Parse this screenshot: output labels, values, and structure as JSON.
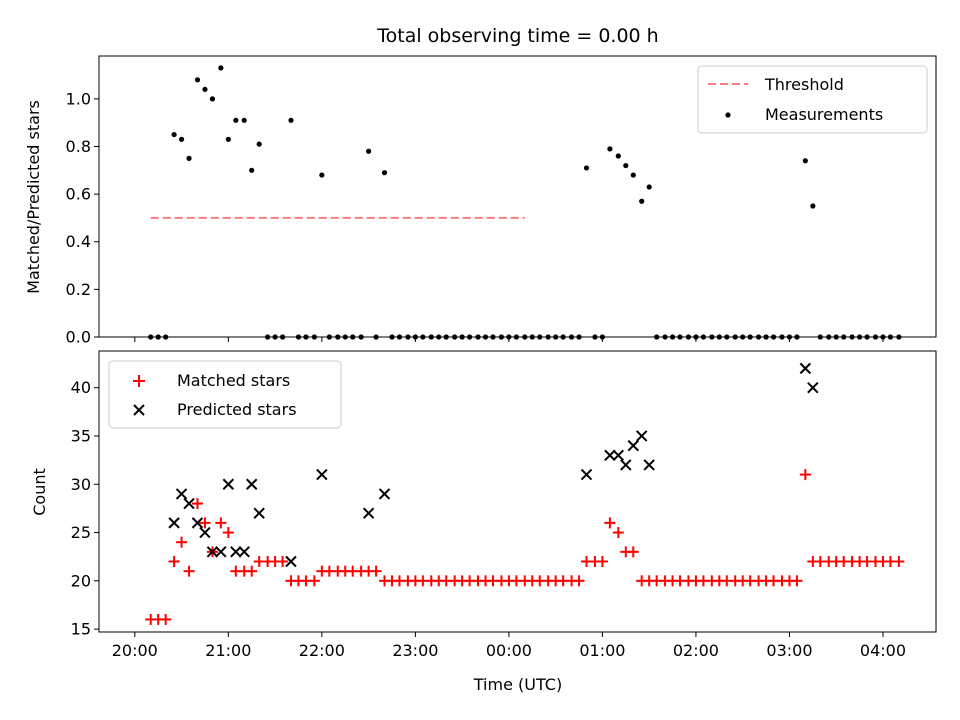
{
  "figure": {
    "title": "Total observing time = 0.00 h",
    "x_axis": {
      "label": "Time (UTC)",
      "tick_labels": [
        "20:00",
        "21:00",
        "22:00",
        "23:00",
        "00:00",
        "01:00",
        "02:00",
        "03:00",
        "04:00"
      ],
      "range_hours": [
        19.617,
        28.567
      ]
    }
  },
  "chart_data": [
    {
      "type": "scatter",
      "ylabel": "Matched/Predicted stars",
      "ylim": [
        0,
        1.18
      ],
      "yticks": [
        0.0,
        0.2,
        0.4,
        0.6,
        0.8,
        1.0
      ],
      "ytick_labels": [
        "0.0",
        "0.2",
        "0.4",
        "0.6",
        "0.8",
        "1.0"
      ],
      "legend_position": "upper right",
      "series": [
        {
          "name": "Threshold",
          "style": "dashed-line",
          "color": "#ff7b7b",
          "x_hours": [
            20.17,
            24.17
          ],
          "y": [
            0.5,
            0.5
          ]
        },
        {
          "name": "Measurements",
          "style": "dot",
          "color": "#000000",
          "x_hours": [
            20.17,
            20.25,
            20.33,
            20.42,
            20.5,
            20.58,
            20.67,
            20.75,
            20.83,
            20.92,
            21.0,
            21.08,
            21.17,
            21.25,
            21.33,
            21.42,
            21.5,
            21.58,
            21.67,
            21.75,
            21.83,
            21.92,
            22.0,
            22.08,
            22.17,
            22.25,
            22.33,
            22.42,
            22.5,
            22.58,
            22.67,
            22.75,
            22.83,
            22.92,
            23.0,
            23.08,
            23.17,
            23.25,
            23.33,
            23.42,
            23.5,
            23.58,
            23.67,
            23.75,
            23.83,
            23.92,
            24.0,
            24.08,
            24.17,
            24.25,
            24.33,
            24.42,
            24.5,
            24.58,
            24.67,
            24.75,
            24.83,
            24.92,
            25.0,
            25.08,
            25.17,
            25.25,
            25.33,
            25.42,
            25.5,
            25.58,
            25.67,
            25.75,
            25.83,
            25.92,
            26.0,
            26.08,
            26.17,
            26.25,
            26.33,
            26.42,
            26.5,
            26.58,
            26.67,
            26.75,
            26.83,
            26.92,
            27.0,
            27.08,
            27.17,
            27.25,
            27.33,
            27.42,
            27.5,
            27.58,
            27.67,
            27.75,
            27.83,
            27.92,
            28.0,
            28.08,
            28.17
          ],
          "y": [
            0.0,
            0.0,
            0.0,
            0.85,
            0.83,
            0.75,
            1.08,
            1.04,
            1.0,
            1.13,
            0.83,
            0.91,
            0.91,
            0.7,
            0.81,
            0.0,
            0.0,
            0.0,
            0.91,
            0.0,
            0.0,
            0.0,
            0.68,
            0.0,
            0.0,
            0.0,
            0.0,
            0.0,
            0.78,
            0.0,
            0.69,
            0.0,
            0.0,
            0.0,
            0.0,
            0.0,
            0.0,
            0.0,
            0.0,
            0.0,
            0.0,
            0.0,
            0.0,
            0.0,
            0.0,
            0.0,
            0.0,
            0.0,
            0.0,
            0.0,
            0.0,
            0.0,
            0.0,
            0.0,
            0.0,
            0.0,
            0.71,
            0.0,
            0.0,
            0.79,
            0.76,
            0.72,
            0.68,
            0.57,
            0.63,
            0.0,
            0.0,
            0.0,
            0.0,
            0.0,
            0.0,
            0.0,
            0.0,
            0.0,
            0.0,
            0.0,
            0.0,
            0.0,
            0.0,
            0.0,
            0.0,
            0.0,
            0.0,
            0.0,
            0.74,
            0.55,
            0.0,
            0.0,
            0.0,
            0.0,
            0.0,
            0.0,
            0.0,
            0.0,
            0.0,
            0.0,
            0.0
          ]
        }
      ]
    },
    {
      "type": "scatter",
      "ylabel": "Count",
      "ylim": [
        14.7,
        43.8
      ],
      "yticks": [
        15,
        20,
        25,
        30,
        35,
        40
      ],
      "ytick_labels": [
        "15",
        "20",
        "25",
        "30",
        "35",
        "40"
      ],
      "legend_position": "upper left",
      "series": [
        {
          "name": "Matched stars",
          "style": "plus",
          "color": "#ff0000",
          "x_hours": [
            20.17,
            20.25,
            20.33,
            20.42,
            20.5,
            20.58,
            20.67,
            20.75,
            20.83,
            20.92,
            21.0,
            21.08,
            21.17,
            21.25,
            21.33,
            21.42,
            21.5,
            21.58,
            21.67,
            21.75,
            21.83,
            21.92,
            22.0,
            22.08,
            22.17,
            22.25,
            22.33,
            22.42,
            22.5,
            22.58,
            22.67,
            22.75,
            22.83,
            22.92,
            23.0,
            23.08,
            23.17,
            23.25,
            23.33,
            23.42,
            23.5,
            23.58,
            23.67,
            23.75,
            23.83,
            23.92,
            24.0,
            24.08,
            24.17,
            24.25,
            24.33,
            24.42,
            24.5,
            24.58,
            24.67,
            24.75,
            24.83,
            24.92,
            25.0,
            25.08,
            25.17,
            25.25,
            25.33,
            25.42,
            25.5,
            25.58,
            25.67,
            25.75,
            25.83,
            25.92,
            26.0,
            26.08,
            26.17,
            26.25,
            26.33,
            26.42,
            26.5,
            26.58,
            26.67,
            26.75,
            26.83,
            26.92,
            27.0,
            27.08,
            27.17,
            27.25,
            27.33,
            27.42,
            27.5,
            27.58,
            27.67,
            27.75,
            27.83,
            27.92,
            28.0,
            28.08,
            28.17
          ],
          "y": [
            16,
            16,
            16,
            22,
            24,
            21,
            28,
            26,
            23,
            26,
            25,
            21,
            21,
            21,
            22,
            22,
            22,
            22,
            20,
            20,
            20,
            20,
            21,
            21,
            21,
            21,
            21,
            21,
            21,
            21,
            20,
            20,
            20,
            20,
            20,
            20,
            20,
            20,
            20,
            20,
            20,
            20,
            20,
            20,
            20,
            20,
            20,
            20,
            20,
            20,
            20,
            20,
            20,
            20,
            20,
            20,
            22,
            22,
            22,
            26,
            25,
            23,
            23,
            20,
            20,
            20,
            20,
            20,
            20,
            20,
            20,
            20,
            20,
            20,
            20,
            20,
            20,
            20,
            20,
            20,
            20,
            20,
            20,
            20,
            31,
            22,
            22,
            22,
            22,
            22,
            22,
            22,
            22,
            22,
            22,
            22,
            22
          ]
        },
        {
          "name": "Predicted stars",
          "style": "x",
          "color": "#000000",
          "x_hours": [
            20.42,
            20.5,
            20.58,
            20.67,
            20.75,
            20.83,
            20.92,
            21.0,
            21.08,
            21.17,
            21.25,
            21.33,
            21.67,
            22.0,
            22.5,
            22.67,
            24.83,
            25.08,
            25.17,
            25.25,
            25.33,
            25.42,
            25.5,
            27.17,
            27.25
          ],
          "y": [
            26,
            29,
            28,
            26,
            25,
            23,
            23,
            30,
            23,
            23,
            30,
            27,
            22,
            31,
            27,
            29,
            31,
            33,
            33,
            32,
            34,
            35,
            32,
            42,
            40
          ]
        }
      ]
    }
  ]
}
